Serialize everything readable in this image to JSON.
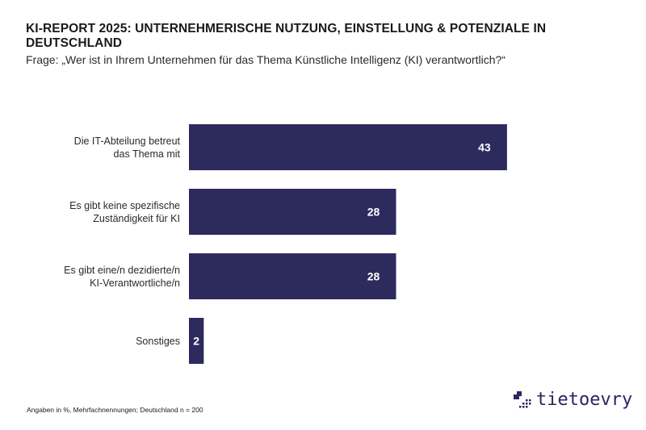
{
  "header": {
    "title": "KI-REPORT 2025: UNTERNEHMERISCHE NUTZUNG, EINSTELLUNG & POTENZIALE IN DEUTSCHLAND",
    "subtitle": "Frage: „Wer ist in Ihrem Unternehmen für das Thema Künstliche Intelligenz (KI) verantwortlich?“"
  },
  "footer": {
    "note": "Angaben in %, Mehrfachnennungen; Deutschland n = 200",
    "brand": "tietoevry",
    "brand_icon": "tietoevry-logo-mark-icon"
  },
  "colors": {
    "bar": "#2d2a5e",
    "bar_label": "#ffffff",
    "brand": "#282560"
  },
  "chart_data": {
    "type": "bar",
    "orientation": "horizontal",
    "title": "KI-REPORT 2025: UNTERNEHMERISCHE NUTZUNG, EINSTELLUNG & POTENZIALE IN DEUTSCHLAND",
    "subtitle": "Frage: „Wer ist in Ihrem Unternehmen für das Thema Künstliche Intelligenz (KI) verantwortlich?“",
    "categories": [
      [
        "Die IT-Abteilung betreut",
        "das Thema mit"
      ],
      [
        "Es gibt keine spezifische",
        "Zuständigkeit für KI"
      ],
      [
        "Es gibt eine/n dezidierte/n",
        "KI-Verantwortliche/n"
      ],
      [
        "Sonstiges"
      ]
    ],
    "values": [
      43,
      28,
      28,
      2
    ],
    "data_labels": [
      "43",
      "28",
      "28",
      "2"
    ],
    "unit": "%",
    "xlabel": "",
    "ylabel": "",
    "xlim": [
      0,
      43
    ],
    "grid": false,
    "legend": "none"
  }
}
